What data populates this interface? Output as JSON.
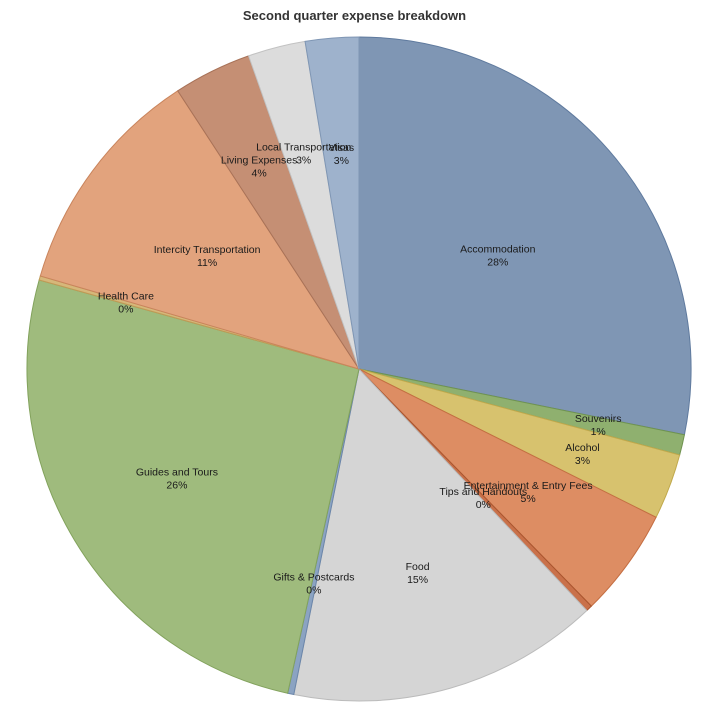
{
  "chart_data": {
    "type": "pie",
    "title": "Second quarter expense breakdown",
    "slices": [
      {
        "label": "Accommodation",
        "value": 28.2,
        "display": "28%",
        "color": "#7f96b4",
        "stroke": "#5f7a9e"
      },
      {
        "label": "Souvenirs",
        "value": 1.0,
        "display": "1%",
        "color": "#8fb06f",
        "stroke": "#6f9350"
      },
      {
        "label": "Alcohol",
        "value": 3.2,
        "display": "3%",
        "color": "#d7c26e",
        "stroke": "#c0a94c"
      },
      {
        "label": "Entertainment & Entry Fees",
        "value": 5.3,
        "display": "5%",
        "color": "#dd8d63",
        "stroke": "#c46e42"
      },
      {
        "label": "Tips and Handouts",
        "value": 0.3,
        "display": "0%",
        "color": "#c9714a",
        "stroke": "#a9552f"
      },
      {
        "label": "Food",
        "value": 15.2,
        "display": "15%",
        "color": "#d5d5d5",
        "stroke": "#bbbbbb"
      },
      {
        "label": "Gifts & Postcards",
        "value": 0.3,
        "display": "0%",
        "color": "#8ba3c2",
        "stroke": "#6b86aa"
      },
      {
        "label": "Guides and Tours",
        "value": 25.9,
        "display": "26%",
        "color": "#9fbb7d",
        "stroke": "#82a25c"
      },
      {
        "label": "Health Care",
        "value": 0.2,
        "display": "0%",
        "color": "#d6b77a",
        "stroke": "#c09a55"
      },
      {
        "label": "Intercity Transportation",
        "value": 11.3,
        "display": "11%",
        "color": "#e2a37d",
        "stroke": "#c9845c"
      },
      {
        "label": "Living Expenses",
        "value": 3.8,
        "display": "4%",
        "color": "#c58f74",
        "stroke": "#a87258"
      },
      {
        "label": "Local Transportation",
        "value": 2.8,
        "display": "3%",
        "color": "#dcdcdc",
        "stroke": "#c2c2c2"
      },
      {
        "label": "Visas",
        "value": 2.6,
        "display": "3%",
        "color": "#9eb2cc",
        "stroke": "#7f96b4"
      }
    ]
  }
}
